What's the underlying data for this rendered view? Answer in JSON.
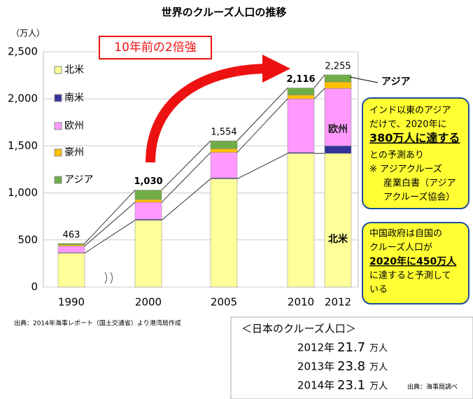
{
  "chart_data": {
    "type": "stacked_bar",
    "title": "世界のクルーズ人口の推移",
    "y_label": "（万人）",
    "categories": [
      "1990",
      "2000",
      "2005",
      "2010",
      "2012"
    ],
    "series": [
      {
        "name": "北米",
        "color": "#ffff99",
        "values": [
          360,
          710,
          1150,
          1420,
          1420
        ]
      },
      {
        "name": "南米",
        "color": "#333399",
        "values": [
          5,
          10,
          10,
          10,
          80
        ]
      },
      {
        "name": "欧州",
        "color": "#ff99ff",
        "values": [
          70,
          180,
          270,
          570,
          610
        ]
      },
      {
        "name": "豪州",
        "color": "#ffc000",
        "values": [
          15,
          30,
          40,
          40,
          70
        ]
      },
      {
        "name": "アジア",
        "color": "#70ad47",
        "values": [
          13,
          100,
          84,
          76,
          75
        ]
      }
    ],
    "totals": {
      "values": [
        463,
        1030,
        1554,
        2116,
        2255
      ],
      "value_labels": [
        "463",
        "1,030",
        "1,554",
        "2,116",
        "2,255"
      ]
    },
    "ylim": [
      0,
      2500
    ],
    "yticks": [
      0,
      500,
      {
        "value": 1000,
        "label": "1,000"
      },
      {
        "value": 1500,
        "label": "1,500"
      },
      {
        "value": 2000,
        "label": "2,000"
      },
      {
        "value": 2500,
        "label": "2,500"
      }
    ],
    "grid": true,
    "legend": "left",
    "arrow_label": "10年前の2倍強",
    "bar_labels": {
      "asia": "アジア",
      "europe": "欧州",
      "na": "北米"
    },
    "note_box_1": [
      "インド以東のアジア",
      "だけで、2020年に",
      "380万人に達する",
      "との予測あり",
      "※ アジアクルーズ",
      "産業白書（アジア",
      "アクルーズ協会）"
    ],
    "note_box_2": [
      "中国政府は自国の",
      "クルーズ人口が",
      "2020年に450万人",
      "に達すると予測して",
      "いる"
    ],
    "source": "出典：2014年海事レポート（国土交通省）より港湾局作成"
  },
  "japan_box": {
    "title": "＜日本のクルーズ人口＞",
    "rows": [
      [
        "2012年",
        "21.7",
        "万人"
      ],
      [
        "2013年",
        "23.8",
        "万人"
      ],
      [
        "2014年",
        "23.1",
        "万人"
      ]
    ],
    "source": "出典：海事局調べ"
  }
}
